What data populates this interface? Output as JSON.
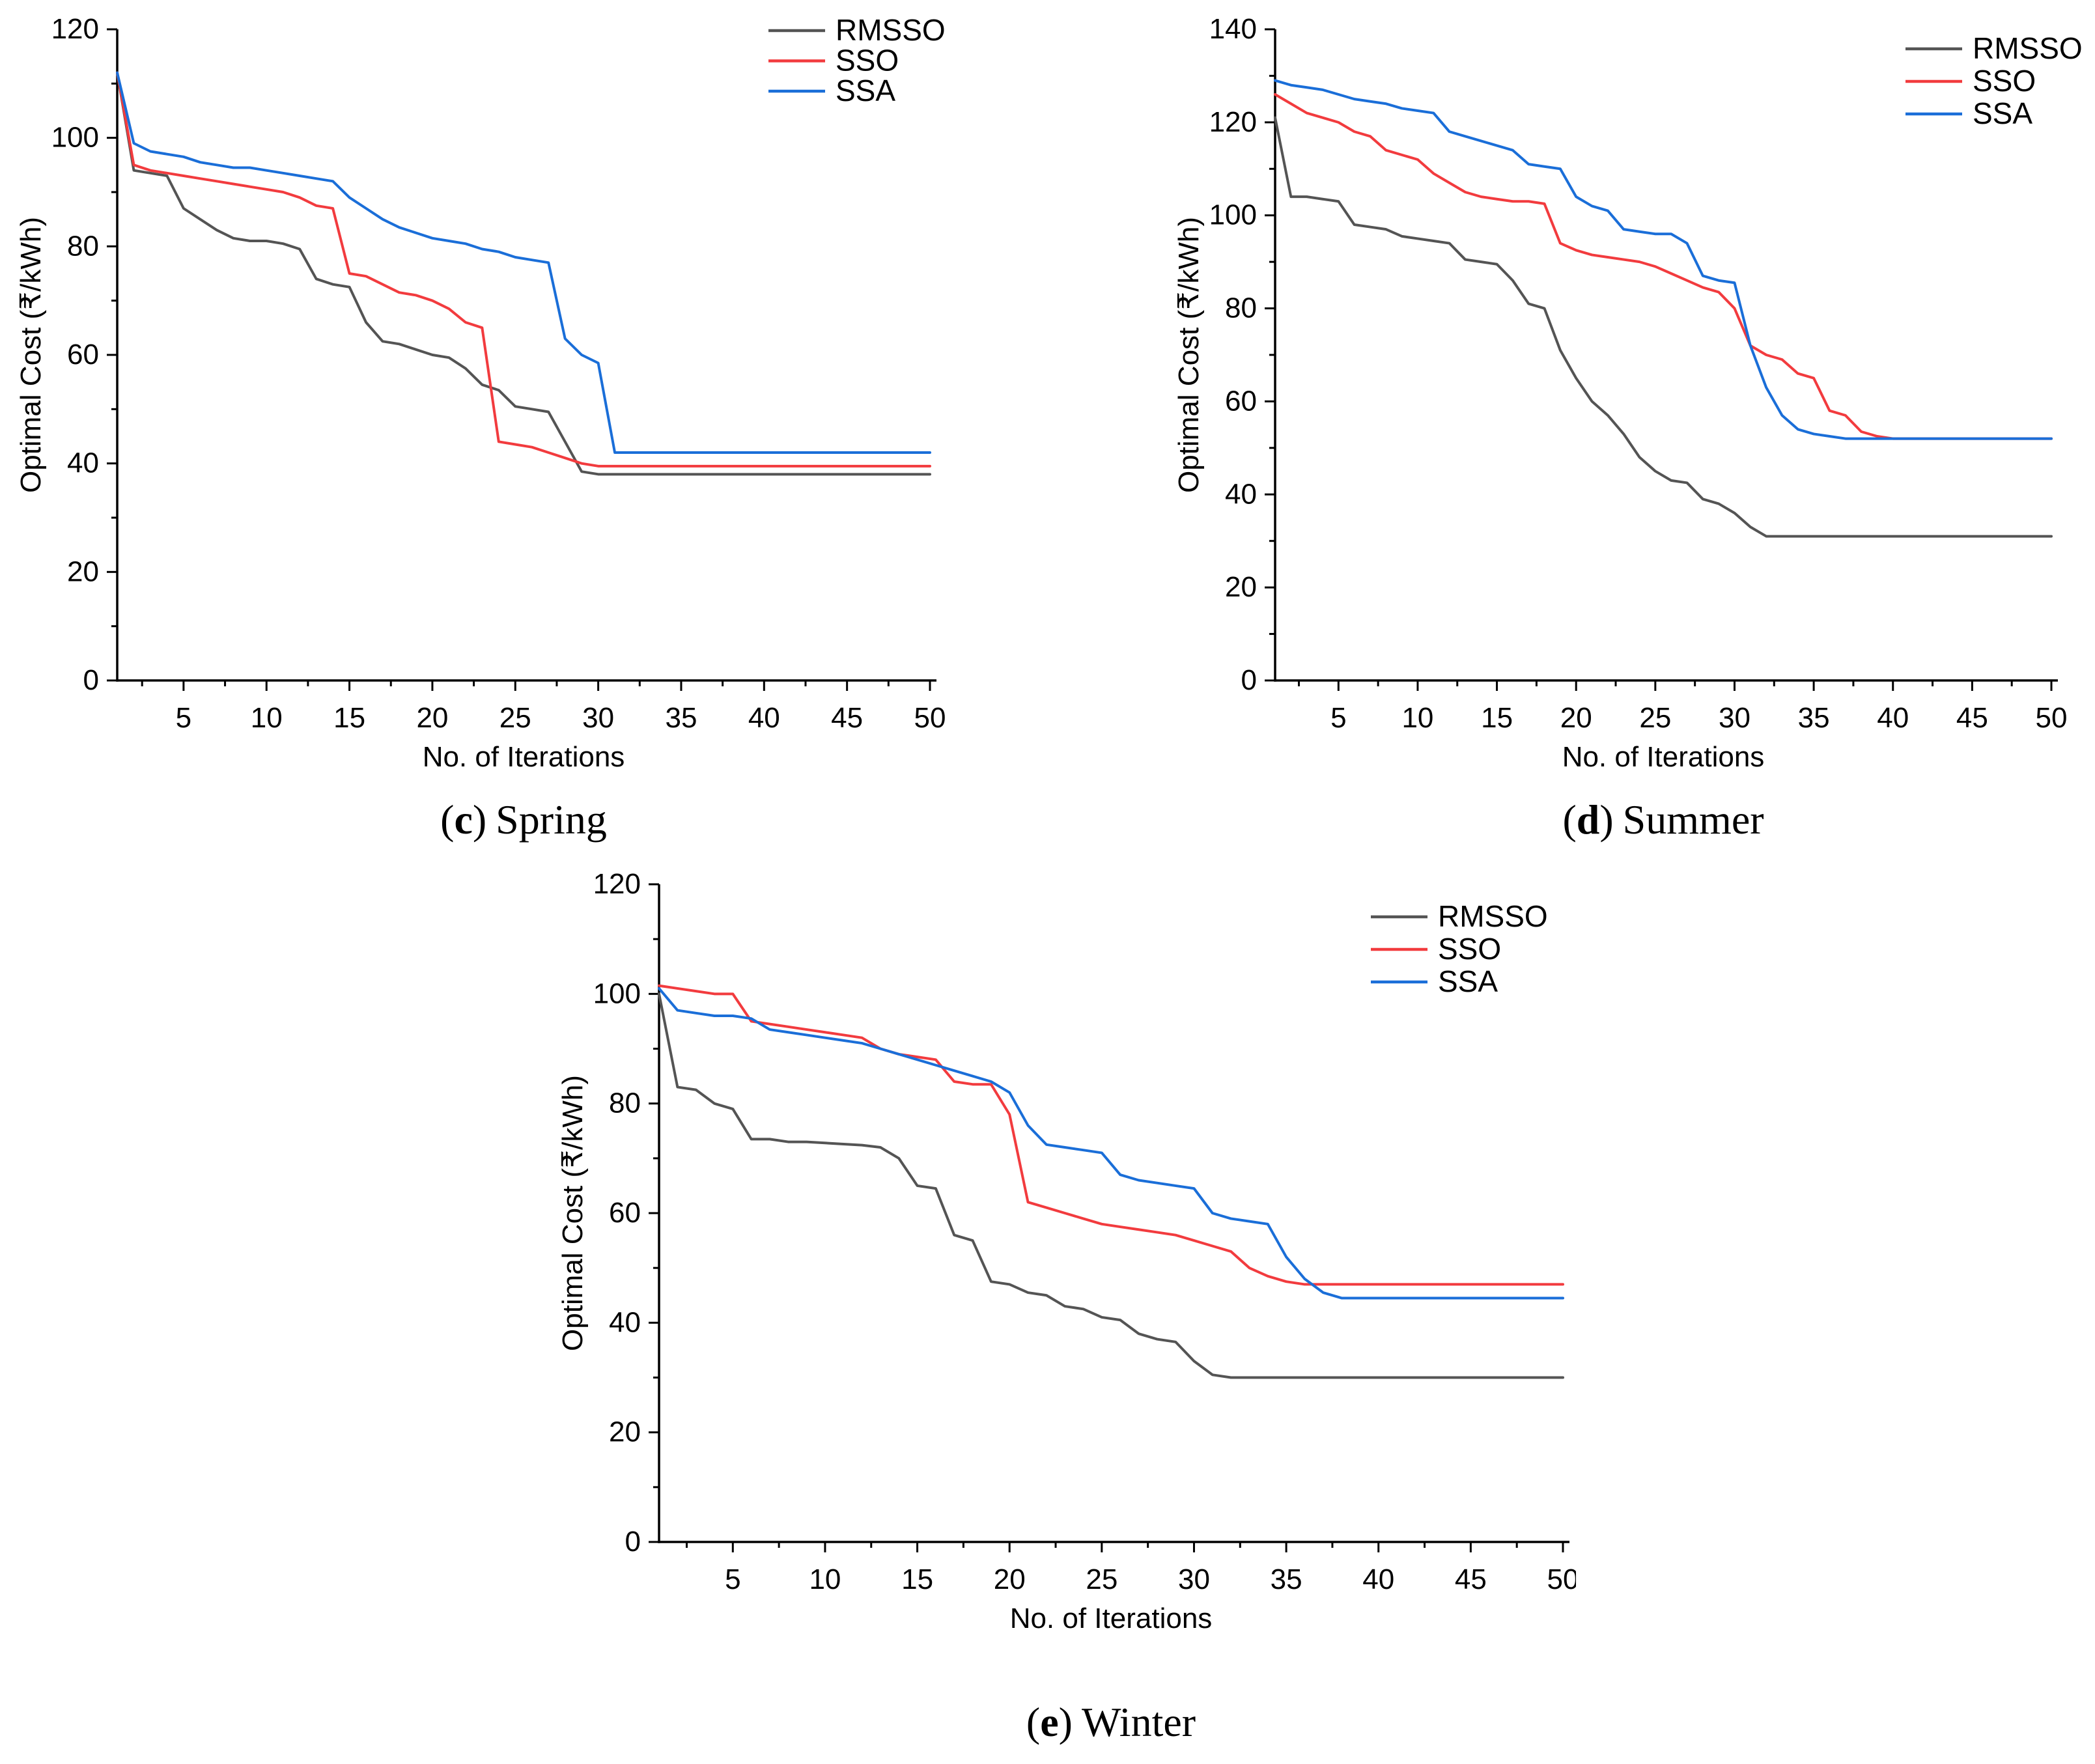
{
  "page": {
    "background": "#ffffff"
  },
  "colors": {
    "rmsso": "#545454",
    "sso": "#f23b3e",
    "ssa": "#1a6ed8",
    "axis": "#000000"
  },
  "chart_data": [
    {
      "id": "spring",
      "type": "line",
      "caption": {
        "open": "(",
        "letter": "c",
        "close": ")",
        "text": "Spring"
      },
      "xlabel": "No. of Iterations",
      "ylabel": "Optimal Cost (₹/kWh)",
      "xlim": [
        1,
        50
      ],
      "ylim": [
        0,
        120
      ],
      "xticks": [
        5,
        10,
        15,
        20,
        25,
        30,
        35,
        40,
        45,
        50
      ],
      "yticks": [
        0,
        20,
        40,
        60,
        80,
        100,
        120
      ],
      "x_minor_step": 2.5,
      "y_minor_step": 10,
      "grid": false,
      "legend_position": "top-right",
      "legend_entries": [
        "RMSSO",
        "SSO",
        "SSA"
      ],
      "series": [
        {
          "name": "RMSSO",
          "color_key": "rmsso",
          "values": [
            112,
            94,
            93.5,
            93,
            87,
            85,
            83,
            81.5,
            81,
            81,
            80.5,
            79.5,
            74,
            73,
            72.5,
            66,
            62.5,
            62,
            61,
            60,
            59.5,
            57.5,
            54.5,
            53.5,
            50.5,
            50,
            49.5,
            44,
            38.5,
            38,
            38,
            38,
            38,
            38,
            38,
            38,
            38,
            38,
            38,
            38,
            38,
            38,
            38,
            38,
            38,
            38,
            38,
            38,
            38,
            38
          ]
        },
        {
          "name": "SSO",
          "color_key": "sso",
          "values": [
            112,
            95,
            94,
            93.5,
            93,
            92.5,
            92,
            91.5,
            91,
            90.5,
            90,
            89,
            87.5,
            87,
            75,
            74.5,
            73,
            71.5,
            71,
            70,
            68.5,
            66,
            65,
            44,
            43.5,
            43,
            42,
            41,
            40,
            39.5,
            39.5,
            39.5,
            39.5,
            39.5,
            39.5,
            39.5,
            39.5,
            39.5,
            39.5,
            39.5,
            39.5,
            39.5,
            39.5,
            39.5,
            39.5,
            39.5,
            39.5,
            39.5,
            39.5,
            39.5
          ]
        },
        {
          "name": "SSA",
          "color_key": "ssa",
          "values": [
            112,
            99,
            97.5,
            97,
            96.5,
            95.5,
            95,
            94.5,
            94.5,
            94,
            93.5,
            93,
            92.5,
            92,
            89,
            87,
            85,
            83.5,
            82.5,
            81.5,
            81,
            80.5,
            79.5,
            79,
            78,
            77.5,
            77,
            63,
            60,
            58.5,
            42,
            42,
            42,
            42,
            42,
            42,
            42,
            42,
            42,
            42,
            42,
            42,
            42,
            42,
            42,
            42,
            42,
            42,
            42,
            42
          ]
        }
      ]
    },
    {
      "id": "summer",
      "type": "line",
      "caption": {
        "open": "(",
        "letter": "d",
        "close": ")",
        "text": "Summer"
      },
      "xlabel": "No. of Iterations",
      "ylabel": "Optimal Cost (₹/kWh)",
      "xlim": [
        1,
        50
      ],
      "ylim": [
        0,
        140
      ],
      "xticks": [
        5,
        10,
        15,
        20,
        25,
        30,
        35,
        40,
        45,
        50
      ],
      "yticks": [
        0,
        20,
        40,
        60,
        80,
        100,
        120,
        140
      ],
      "x_minor_step": 2.5,
      "y_minor_step": 10,
      "grid": false,
      "legend_position": "top-right",
      "legend_entries": [
        "RMSSO",
        "SSO",
        "SSA"
      ],
      "series": [
        {
          "name": "RMSSO",
          "color_key": "rmsso",
          "values": [
            121,
            104,
            104,
            103.5,
            103,
            98,
            97.5,
            97,
            95.5,
            95,
            94.5,
            94,
            90.5,
            90,
            89.5,
            86,
            81,
            80,
            71,
            65,
            60,
            57,
            53,
            48,
            45,
            43,
            42.5,
            39,
            38,
            36,
            33,
            31,
            31,
            31,
            31,
            31,
            31,
            31,
            31,
            31,
            31,
            31,
            31,
            31,
            31,
            31,
            31,
            31,
            31,
            31
          ]
        },
        {
          "name": "SSO",
          "color_key": "sso",
          "values": [
            126,
            124,
            122,
            121,
            120,
            118,
            117,
            114,
            113,
            112,
            109,
            107,
            105,
            104,
            103.5,
            103,
            103,
            102.5,
            94,
            92.5,
            91.5,
            91,
            90.5,
            90,
            89,
            87.5,
            86,
            84.5,
            83.5,
            80,
            72,
            70,
            69,
            66,
            65,
            58,
            57,
            53.5,
            52.5,
            52,
            52,
            52,
            52,
            52,
            52,
            52,
            52,
            52,
            52,
            52
          ]
        },
        {
          "name": "SSA",
          "color_key": "ssa",
          "values": [
            129,
            128,
            127.5,
            127,
            126,
            125,
            124.5,
            124,
            123,
            122.5,
            122,
            118,
            117,
            116,
            115,
            114,
            111,
            110.5,
            110,
            104,
            102,
            101,
            97,
            96.5,
            96,
            96,
            94,
            87,
            86,
            85.5,
            72,
            63,
            57,
            54,
            53,
            52.5,
            52,
            52,
            52,
            52,
            52,
            52,
            52,
            52,
            52,
            52,
            52,
            52,
            52,
            52
          ]
        }
      ]
    },
    {
      "id": "winter",
      "type": "line",
      "caption": {
        "open": "(",
        "letter": "e",
        "close": ")",
        "text": "Winter"
      },
      "xlabel": "No. of Iterations",
      "ylabel": "Optimal Cost (₹/kWh)",
      "xlim": [
        1,
        50
      ],
      "ylim": [
        0,
        120
      ],
      "xticks": [
        5,
        10,
        15,
        20,
        25,
        30,
        35,
        40,
        45,
        50
      ],
      "yticks": [
        0,
        20,
        40,
        60,
        80,
        100,
        120
      ],
      "x_minor_step": 2.5,
      "y_minor_step": 10,
      "grid": false,
      "legend_position": "top-right",
      "legend_entries": [
        "RMSSO",
        "SSO",
        "SSA"
      ],
      "series": [
        {
          "name": "RMSSO",
          "color_key": "rmsso",
          "values": [
            100,
            83,
            82.5,
            80,
            79,
            73.5,
            73.5,
            73,
            73,
            72.8,
            72.6,
            72.4,
            72,
            70,
            65,
            64.5,
            56,
            55,
            47.5,
            47,
            45.5,
            45,
            43,
            42.5,
            41,
            40.5,
            38,
            37,
            36.5,
            33,
            30.5,
            30,
            30,
            30,
            30,
            30,
            30,
            30,
            30,
            30,
            30,
            30,
            30,
            30,
            30,
            30,
            30,
            30,
            30,
            30
          ]
        },
        {
          "name": "SSO",
          "color_key": "sso",
          "values": [
            101.5,
            101,
            100.5,
            100,
            100,
            95,
            94.5,
            94,
            93.5,
            93,
            92.5,
            92,
            90,
            89,
            88.5,
            88,
            84,
            83.5,
            83.5,
            78,
            62,
            61,
            60,
            59,
            58,
            57.5,
            57,
            56.5,
            56,
            55,
            54,
            53,
            50,
            48.5,
            47.5,
            47,
            47,
            47,
            47,
            47,
            47,
            47,
            47,
            47,
            47,
            47,
            47,
            47,
            47,
            47
          ]
        },
        {
          "name": "SSA",
          "color_key": "ssa",
          "values": [
            101,
            97,
            96.5,
            96,
            96,
            95.5,
            93.5,
            93,
            92.5,
            92,
            91.5,
            91,
            90,
            89,
            88,
            87,
            86,
            85,
            84,
            82,
            76,
            72.5,
            72,
            71.5,
            71,
            67,
            66,
            65.5,
            65,
            64.5,
            60,
            59,
            58.5,
            58,
            52,
            48,
            45.5,
            44.5,
            44.5,
            44.5,
            44.5,
            44.5,
            44.5,
            44.5,
            44.5,
            44.5,
            44.5,
            44.5,
            44.5,
            44.5
          ]
        }
      ]
    }
  ]
}
